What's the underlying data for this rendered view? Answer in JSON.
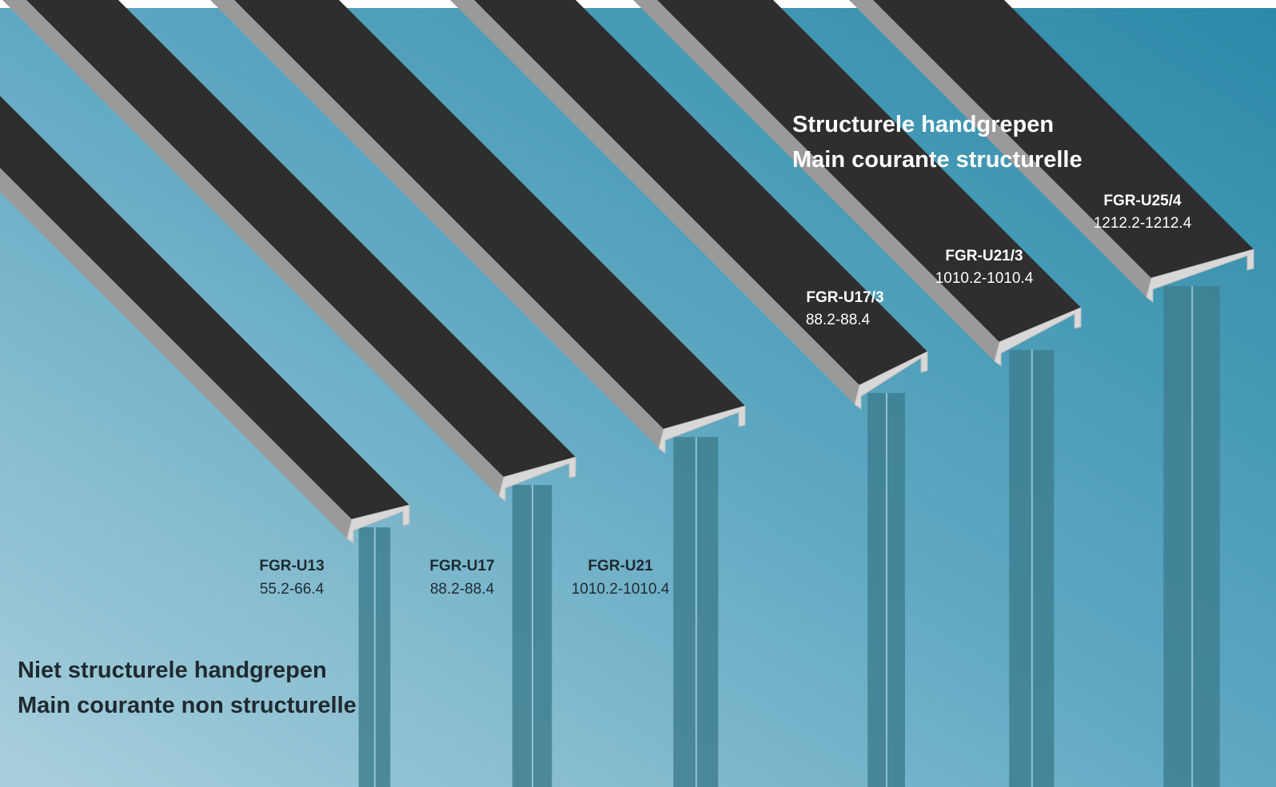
{
  "headings": {
    "structural": {
      "line1": "Structurele handgrepen",
      "line2": "Main courante structurelle"
    },
    "non_structural": {
      "line1": "Niet structurele handgrepen",
      "line2": "Main courante non structurelle"
    }
  },
  "products": [
    {
      "code": "FGR-U13",
      "range": "55.2-66.4"
    },
    {
      "code": "FGR-U17",
      "range": "88.2-88.4"
    },
    {
      "code": "FGR-U21",
      "range": "1010.2-1010.4"
    },
    {
      "code": "FGR-U17/3",
      "range": "88.2-88.4"
    },
    {
      "code": "FGR-U21/3",
      "range": "1010.2-1010.4"
    },
    {
      "code": "FGR-U25/4",
      "range": "1212.2-1212.4"
    }
  ]
}
